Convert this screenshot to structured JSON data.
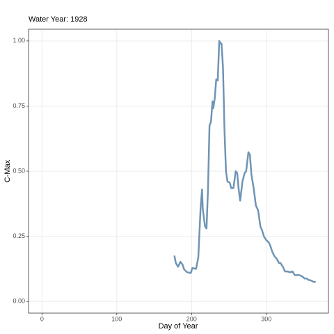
{
  "chart_data": {
    "type": "line",
    "title": "Water Year: 1928",
    "x_label": "Day of Year",
    "y_label": "C-Max",
    "x": [
      177,
      179,
      182,
      185,
      188,
      190,
      194,
      199,
      201,
      206,
      209,
      212,
      214,
      215,
      218,
      220,
      222,
      224,
      226,
      228,
      229,
      231,
      233,
      235,
      237,
      239,
      240,
      242,
      244,
      246,
      248,
      251,
      253,
      256,
      259,
      261,
      263,
      265,
      268,
      271,
      273,
      276,
      278,
      280,
      283,
      286,
      289,
      292,
      294,
      297,
      300,
      303,
      305,
      308,
      311,
      314,
      317,
      319,
      322,
      325,
      328,
      332,
      335,
      338,
      344,
      348,
      351,
      354,
      356,
      360,
      363,
      366
    ],
    "series": [
      {
        "name": "C-Max",
        "color": "#7094b4",
        "values": [
          0.176,
          0.147,
          0.133,
          0.152,
          0.141,
          0.123,
          0.112,
          0.109,
          0.128,
          0.125,
          0.168,
          0.355,
          0.43,
          0.355,
          0.288,
          0.28,
          0.435,
          0.675,
          0.69,
          0.768,
          0.741,
          0.78,
          0.853,
          0.848,
          1.0,
          0.99,
          0.99,
          0.9,
          0.66,
          0.5,
          0.46,
          0.456,
          0.435,
          0.435,
          0.5,
          0.493,
          0.43,
          0.387,
          0.46,
          0.493,
          0.5,
          0.573,
          0.563,
          0.488,
          0.435,
          0.368,
          0.35,
          0.288,
          0.275,
          0.248,
          0.235,
          0.227,
          0.216,
          0.19,
          0.173,
          0.163,
          0.147,
          0.147,
          0.133,
          0.115,
          0.115,
          0.112,
          0.115,
          0.101,
          0.101,
          0.096,
          0.088,
          0.088,
          0.083,
          0.08,
          0.075,
          0.075
        ]
      }
    ],
    "xlim": [
      -18,
      383
    ],
    "xticks": [
      0,
      100,
      200,
      300
    ],
    "ylim": [
      -0.045,
      1.045
    ],
    "yticks": [
      {
        "value": 0,
        "label": "0.00"
      },
      {
        "value": 0.25,
        "label": "0.25"
      },
      {
        "value": 0.5,
        "label": "0.50"
      },
      {
        "value": 0.75,
        "label": "0.75"
      },
      {
        "value": 1,
        "label": "1.00"
      }
    ],
    "grid": true
  }
}
